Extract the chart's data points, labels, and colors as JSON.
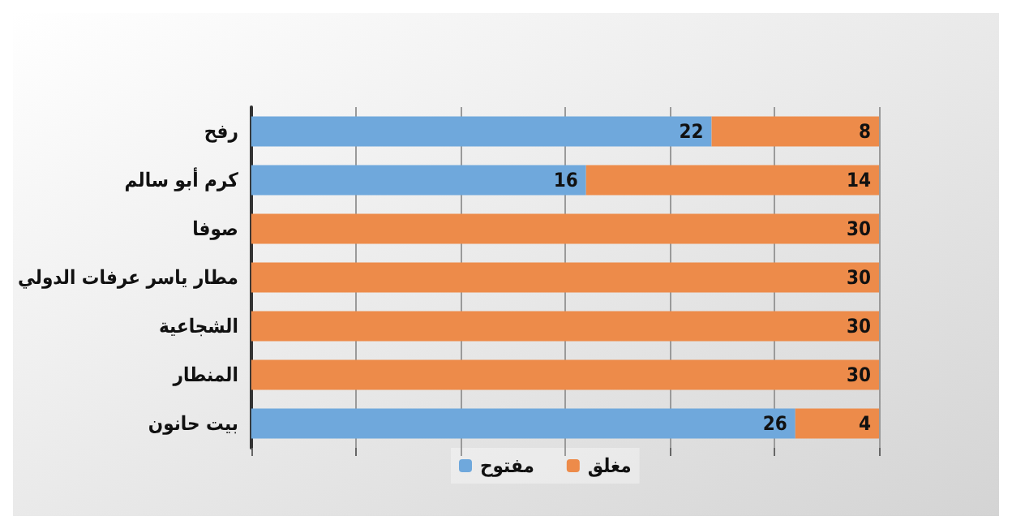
{
  "chart_data": {
    "type": "bar",
    "orientation": "horizontal",
    "stacked": true,
    "categories": [
      "رفح",
      "كرم أبو سالم",
      "صوفا",
      "مطار ياسر عرفات الدولي",
      "الشجاعية",
      "المنطار",
      "بيت حانون"
    ],
    "series": [
      {
        "name": "مفتوح",
        "color": "#6fa8dc",
        "values": [
          22,
          16,
          0,
          0,
          0,
          0,
          26
        ],
        "value_labels": [
          "22",
          "16",
          null,
          null,
          null,
          null,
          "26"
        ]
      },
      {
        "name": "مغلق",
        "color": "#ed8b4a",
        "values": [
          8,
          14,
          30,
          30,
          30,
          30,
          4
        ],
        "value_labels": [
          "8",
          "14",
          "30",
          "30",
          "30",
          "30",
          "4"
        ]
      }
    ],
    "xlim": [
      0,
      30
    ],
    "xticks": [
      0,
      5,
      10,
      15,
      20,
      25,
      30
    ],
    "tick_labels": "y",
    "grid": "x",
    "legend": "bottom"
  }
}
